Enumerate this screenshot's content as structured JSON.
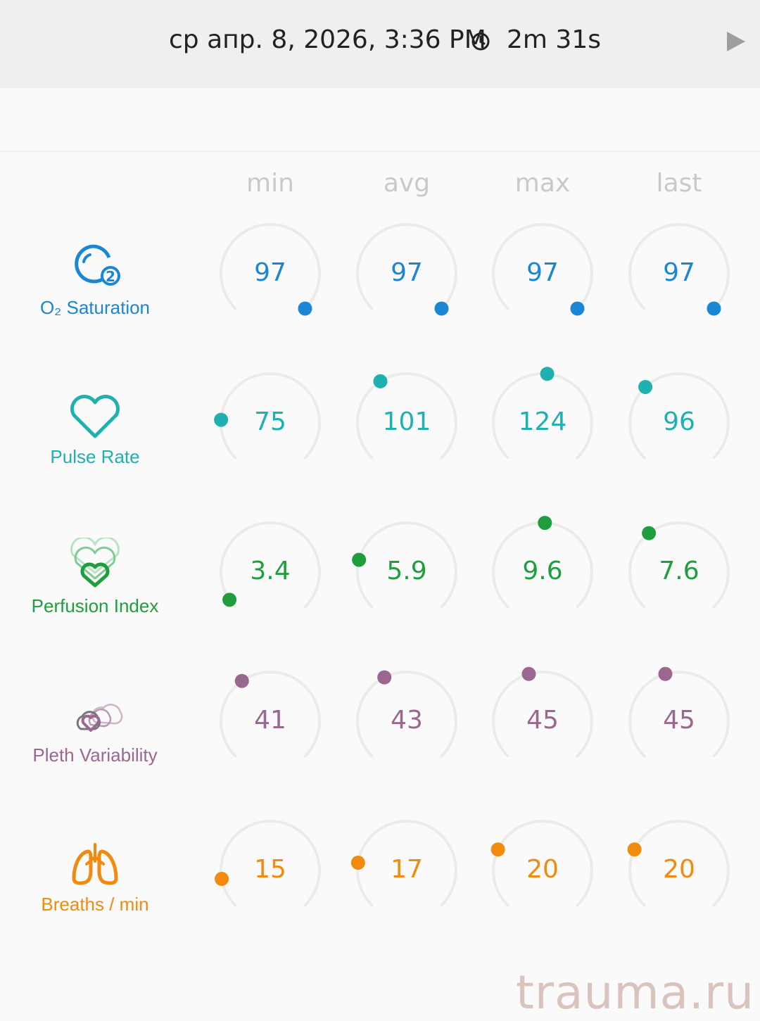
{
  "header": {
    "date_time": "ср апр. 8, 2026, 3:36 PM",
    "duration": "2m 31s",
    "clock_icon": "clock-icon",
    "play_icon": "play-icon"
  },
  "columns": [
    "min",
    "avg",
    "max",
    "last"
  ],
  "metrics": [
    {
      "id": "o2",
      "label": "O₂ Saturation",
      "icon": "o2-saturation-icon",
      "color": "#1a86d6",
      "values": [
        "97",
        "97",
        "97",
        "97"
      ],
      "levels": [
        1.0,
        1.0,
        1.0,
        1.0
      ]
    },
    {
      "id": "pulse",
      "label": "Pulse Rate",
      "icon": "heart-icon",
      "color": "#1fb0b0",
      "values": [
        "75",
        "101",
        "124",
        "96"
      ],
      "levels": [
        0.18,
        0.38,
        0.52,
        0.34
      ]
    },
    {
      "id": "perfusion",
      "label": "Perfusion Index",
      "icon": "perfusion-hearts-icon",
      "color": "#1e9e3c",
      "values": [
        "3.4",
        "5.9",
        "9.6",
        "7.6"
      ],
      "levels": [
        0.04,
        0.22,
        0.51,
        0.36
      ]
    },
    {
      "id": "pleth",
      "label": "Pleth Variability",
      "icon": "pleth-variability-icon",
      "color": "#9a6791",
      "values": [
        "41",
        "43",
        "45",
        "45"
      ],
      "levels": [
        0.37,
        0.4,
        0.44,
        0.44
      ]
    },
    {
      "id": "breaths",
      "label": "Breaths / min",
      "icon": "lungs-icon",
      "color": "#f28a0e",
      "values": [
        "15",
        "17",
        "20",
        "20"
      ],
      "levels": [
        0.13,
        0.2,
        0.26,
        0.26
      ]
    }
  ],
  "watermark": "trauma.ru"
}
